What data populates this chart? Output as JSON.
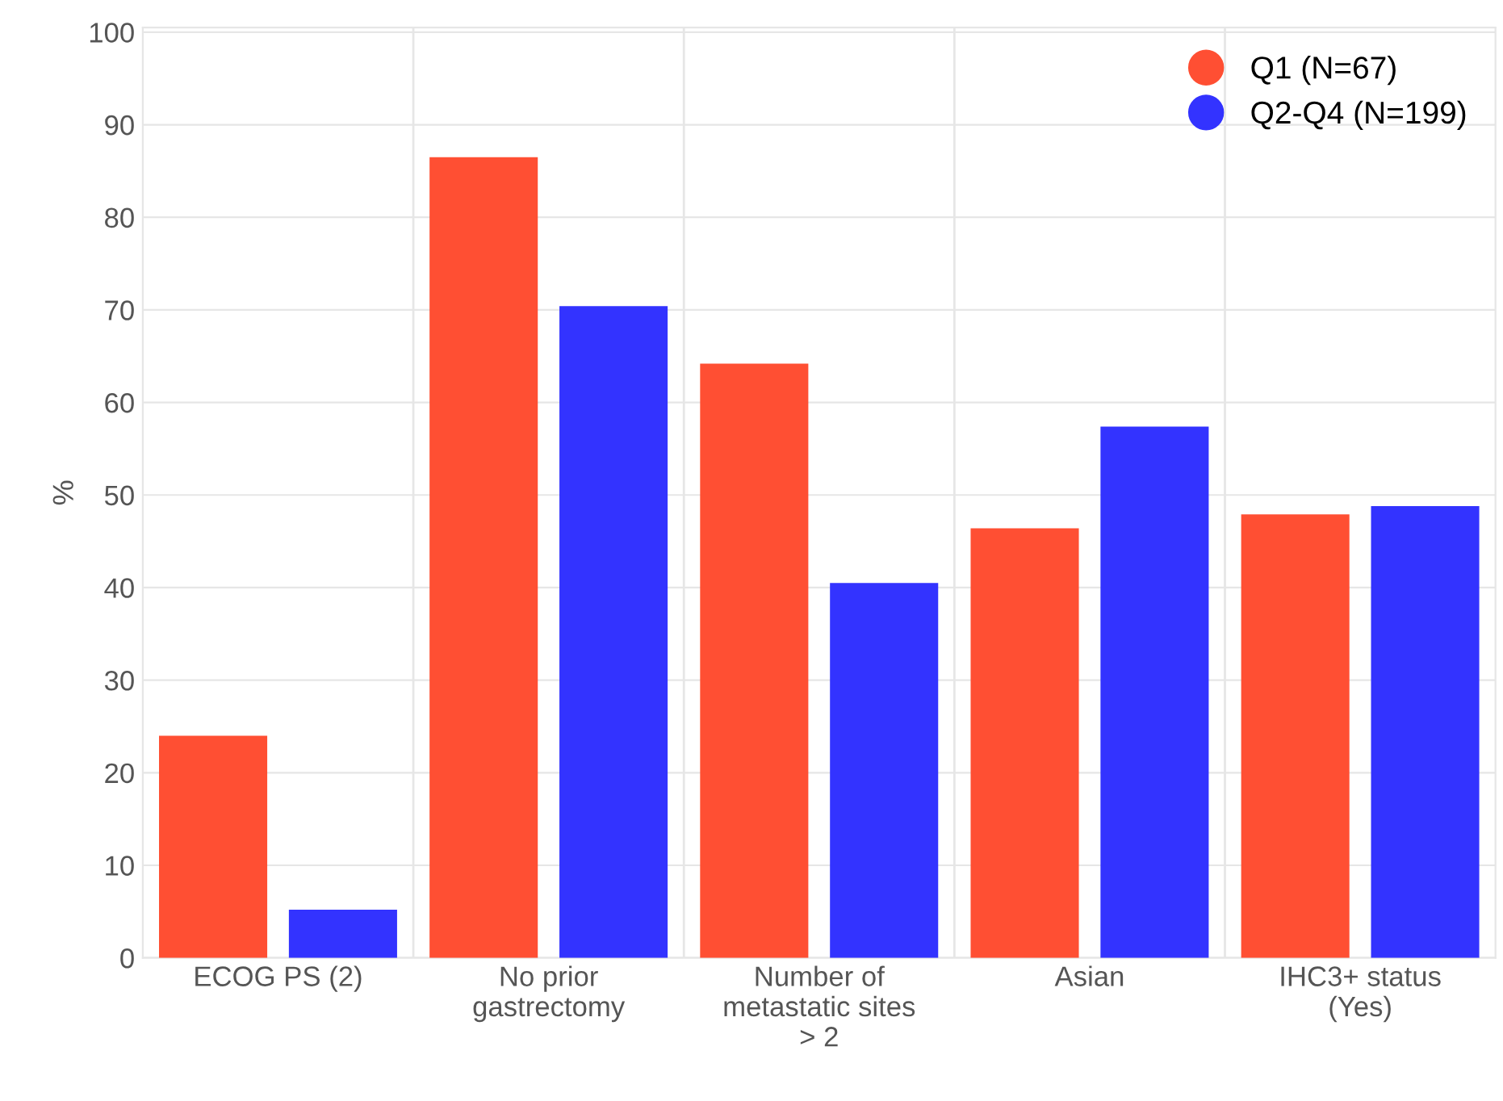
{
  "chart_data": {
    "type": "bar",
    "ylabel": "%",
    "categories": [
      "ECOG PS (2)",
      "No prior\ngastrectomy",
      "Number of\nmetastatic sites\n> 2",
      "Asian",
      "IHC3+ status\n(Yes)"
    ],
    "series": [
      {
        "name": "Q1 (N=67)",
        "color": "#ff4f33",
        "values": [
          24.0,
          86.5,
          64.2,
          46.4,
          47.9
        ]
      },
      {
        "name": "Q2-Q4 (N=199)",
        "color": "#3333ff",
        "values": [
          5.2,
          70.4,
          40.5,
          57.4,
          48.8
        ]
      }
    ],
    "ylim": [
      0,
      100.5
    ],
    "yticks": [
      0,
      10,
      20,
      30,
      40,
      50,
      60,
      70,
      80,
      90,
      100
    ],
    "grid": "y",
    "legend": "top right"
  }
}
